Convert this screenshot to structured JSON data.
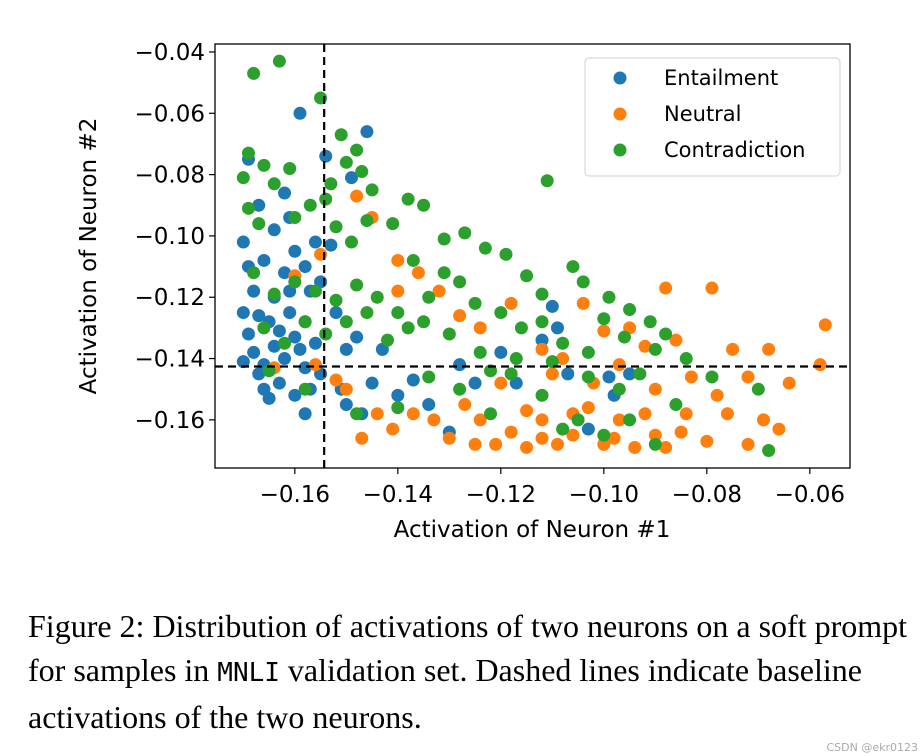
{
  "chart_data": {
    "type": "scatter",
    "title": "",
    "xlabel": "Activation of Neuron #1",
    "ylabel": "Activation of Neuron #2",
    "xlim": [
      -0.1755,
      -0.0522
    ],
    "ylim": [
      -0.1757,
      -0.0374
    ],
    "xticks": [
      "−0.16",
      "−0.14",
      "−0.12",
      "−0.10",
      "−0.08",
      "−0.06"
    ],
    "xtick_values": [
      -0.16,
      -0.14,
      -0.12,
      -0.1,
      -0.08,
      -0.06
    ],
    "yticks": [
      "−0.04",
      "−0.06",
      "−0.08",
      "−0.10",
      "−0.12",
      "−0.14",
      "−0.16"
    ],
    "ytick_values": [
      -0.04,
      -0.06,
      -0.08,
      -0.1,
      -0.12,
      -0.14,
      -0.16
    ],
    "grid": false,
    "legend_position": "top-right",
    "baselines": {
      "x": -0.1543,
      "y": -0.1426,
      "style": "dashed",
      "color": "#000000"
    },
    "series": [
      {
        "name": "Entailment",
        "color": "#1f77b4",
        "points": [
          [
            -0.17,
            -0.102
          ],
          [
            -0.169,
            -0.11
          ],
          [
            -0.168,
            -0.118
          ],
          [
            -0.17,
            -0.125
          ],
          [
            -0.169,
            -0.132
          ],
          [
            -0.168,
            -0.138
          ],
          [
            -0.17,
            -0.141
          ],
          [
            -0.167,
            -0.145
          ],
          [
            -0.166,
            -0.15
          ],
          [
            -0.165,
            -0.153
          ],
          [
            -0.163,
            -0.148
          ],
          [
            -0.165,
            -0.128
          ],
          [
            -0.164,
            -0.12
          ],
          [
            -0.166,
            -0.108
          ],
          [
            -0.164,
            -0.098
          ],
          [
            -0.167,
            -0.09
          ],
          [
            -0.169,
            -0.075
          ],
          [
            -0.162,
            -0.086
          ],
          [
            -0.161,
            -0.094
          ],
          [
            -0.16,
            -0.105
          ],
          [
            -0.162,
            -0.112
          ],
          [
            -0.161,
            -0.125
          ],
          [
            -0.16,
            -0.133
          ],
          [
            -0.162,
            -0.14
          ],
          [
            -0.158,
            -0.143
          ],
          [
            -0.159,
            -0.137
          ],
          [
            -0.158,
            -0.128
          ],
          [
            -0.157,
            -0.118
          ],
          [
            -0.158,
            -0.11
          ],
          [
            -0.156,
            -0.102
          ],
          [
            -0.155,
            -0.115
          ],
          [
            -0.156,
            -0.135
          ],
          [
            -0.155,
            -0.145
          ],
          [
            -0.157,
            -0.15
          ],
          [
            -0.16,
            -0.152
          ],
          [
            -0.158,
            -0.158
          ],
          [
            -0.159,
            -0.06
          ],
          [
            -0.154,
            -0.074
          ],
          [
            -0.146,
            -0.066
          ],
          [
            -0.149,
            -0.081
          ],
          [
            -0.153,
            -0.103
          ],
          [
            -0.152,
            -0.125
          ],
          [
            -0.15,
            -0.137
          ],
          [
            -0.148,
            -0.133
          ],
          [
            -0.151,
            -0.15
          ],
          [
            -0.15,
            -0.155
          ],
          [
            -0.147,
            -0.158
          ],
          [
            -0.145,
            -0.148
          ],
          [
            -0.143,
            -0.137
          ],
          [
            -0.14,
            -0.152
          ],
          [
            -0.137,
            -0.147
          ],
          [
            -0.134,
            -0.155
          ],
          [
            -0.13,
            -0.164
          ],
          [
            -0.128,
            -0.142
          ],
          [
            -0.125,
            -0.148
          ],
          [
            -0.12,
            -0.138
          ],
          [
            -0.117,
            -0.148
          ],
          [
            -0.112,
            -0.134
          ],
          [
            -0.109,
            -0.13
          ],
          [
            -0.11,
            -0.123
          ],
          [
            -0.107,
            -0.145
          ],
          [
            -0.103,
            -0.163
          ],
          [
            -0.098,
            -0.152
          ],
          [
            -0.095,
            -0.145
          ],
          [
            -0.099,
            -0.146
          ],
          [
            -0.163,
            -0.131
          ],
          [
            -0.167,
            -0.126
          ],
          [
            -0.161,
            -0.118
          ],
          [
            -0.164,
            -0.136
          ],
          [
            -0.166,
            -0.142
          ]
        ]
      },
      {
        "name": "Neutral",
        "color": "#ff7f0e",
        "points": [
          [
            -0.148,
            -0.087
          ],
          [
            -0.145,
            -0.094
          ],
          [
            -0.14,
            -0.108
          ],
          [
            -0.136,
            -0.112
          ],
          [
            -0.132,
            -0.118
          ],
          [
            -0.128,
            -0.126
          ],
          [
            -0.124,
            -0.13
          ],
          [
            -0.118,
            -0.122
          ],
          [
            -0.112,
            -0.137
          ],
          [
            -0.108,
            -0.14
          ],
          [
            -0.104,
            -0.122
          ],
          [
            -0.1,
            -0.131
          ],
          [
            -0.095,
            -0.13
          ],
          [
            -0.092,
            -0.136
          ],
          [
            -0.088,
            -0.117
          ],
          [
            -0.086,
            -0.134
          ],
          [
            -0.079,
            -0.117
          ],
          [
            -0.075,
            -0.137
          ],
          [
            -0.068,
            -0.137
          ],
          [
            -0.057,
            -0.129
          ],
          [
            -0.058,
            -0.142
          ],
          [
            -0.064,
            -0.148
          ],
          [
            -0.069,
            -0.16
          ],
          [
            -0.076,
            -0.158
          ],
          [
            -0.08,
            -0.167
          ],
          [
            -0.085,
            -0.164
          ],
          [
            -0.09,
            -0.165
          ],
          [
            -0.094,
            -0.169
          ],
          [
            -0.097,
            -0.16
          ],
          [
            -0.1,
            -0.168
          ],
          [
            -0.103,
            -0.156
          ],
          [
            -0.106,
            -0.165
          ],
          [
            -0.109,
            -0.168
          ],
          [
            -0.112,
            -0.16
          ],
          [
            -0.115,
            -0.169
          ],
          [
            -0.118,
            -0.164
          ],
          [
            -0.121,
            -0.168
          ],
          [
            -0.124,
            -0.16
          ],
          [
            -0.127,
            -0.155
          ],
          [
            -0.13,
            -0.166
          ],
          [
            -0.133,
            -0.16
          ],
          [
            -0.137,
            -0.158
          ],
          [
            -0.141,
            -0.163
          ],
          [
            -0.144,
            -0.158
          ],
          [
            -0.147,
            -0.166
          ],
          [
            -0.15,
            -0.15
          ],
          [
            -0.152,
            -0.147
          ],
          [
            -0.156,
            -0.142
          ],
          [
            -0.164,
            -0.143
          ],
          [
            -0.16,
            -0.113
          ],
          [
            -0.155,
            -0.106
          ],
          [
            -0.12,
            -0.148
          ],
          [
            -0.11,
            -0.145
          ],
          [
            -0.102,
            -0.148
          ],
          [
            -0.097,
            -0.142
          ],
          [
            -0.09,
            -0.15
          ],
          [
            -0.083,
            -0.146
          ],
          [
            -0.078,
            -0.152
          ],
          [
            -0.072,
            -0.146
          ],
          [
            -0.066,
            -0.163
          ],
          [
            -0.072,
            -0.168
          ],
          [
            -0.088,
            -0.169
          ],
          [
            -0.106,
            -0.158
          ],
          [
            -0.115,
            -0.157
          ],
          [
            -0.125,
            -0.168
          ],
          [
            -0.112,
            -0.166
          ],
          [
            -0.098,
            -0.166
          ],
          [
            -0.092,
            -0.158
          ],
          [
            -0.084,
            -0.158
          ],
          [
            -0.14,
            -0.118
          ]
        ]
      },
      {
        "name": "Contradiction",
        "color": "#2ca02c",
        "points": [
          [
            -0.168,
            -0.047
          ],
          [
            -0.163,
            -0.043
          ],
          [
            -0.155,
            -0.055
          ],
          [
            -0.169,
            -0.073
          ],
          [
            -0.166,
            -0.077
          ],
          [
            -0.161,
            -0.078
          ],
          [
            -0.17,
            -0.081
          ],
          [
            -0.164,
            -0.083
          ],
          [
            -0.169,
            -0.091
          ],
          [
            -0.167,
            -0.096
          ],
          [
            -0.16,
            -0.094
          ],
          [
            -0.157,
            -0.09
          ],
          [
            -0.154,
            -0.088
          ],
          [
            -0.153,
            -0.083
          ],
          [
            -0.15,
            -0.076
          ],
          [
            -0.148,
            -0.072
          ],
          [
            -0.151,
            -0.067
          ],
          [
            -0.147,
            -0.079
          ],
          [
            -0.145,
            -0.085
          ],
          [
            -0.152,
            -0.097
          ],
          [
            -0.149,
            -0.102
          ],
          [
            -0.146,
            -0.095
          ],
          [
            -0.141,
            -0.096
          ],
          [
            -0.138,
            -0.088
          ],
          [
            -0.135,
            -0.09
          ],
          [
            -0.131,
            -0.101
          ],
          [
            -0.127,
            -0.099
          ],
          [
            -0.123,
            -0.104
          ],
          [
            -0.111,
            -0.082
          ],
          [
            -0.119,
            -0.106
          ],
          [
            -0.115,
            -0.113
          ],
          [
            -0.112,
            -0.119
          ],
          [
            -0.106,
            -0.11
          ],
          [
            -0.104,
            -0.115
          ],
          [
            -0.099,
            -0.12
          ],
          [
            -0.095,
            -0.124
          ],
          [
            -0.091,
            -0.128
          ],
          [
            -0.088,
            -0.132
          ],
          [
            -0.09,
            -0.137
          ],
          [
            -0.084,
            -0.14
          ],
          [
            -0.079,
            -0.146
          ],
          [
            -0.068,
            -0.17
          ],
          [
            -0.07,
            -0.15
          ],
          [
            -0.086,
            -0.155
          ],
          [
            -0.095,
            -0.16
          ],
          [
            -0.1,
            -0.165
          ],
          [
            -0.105,
            -0.16
          ],
          [
            -0.112,
            -0.152
          ],
          [
            -0.118,
            -0.145
          ],
          [
            -0.124,
            -0.138
          ],
          [
            -0.13,
            -0.132
          ],
          [
            -0.135,
            -0.128
          ],
          [
            -0.14,
            -0.125
          ],
          [
            -0.144,
            -0.12
          ],
          [
            -0.148,
            -0.116
          ],
          [
            -0.152,
            -0.121
          ],
          [
            -0.156,
            -0.118
          ],
          [
            -0.16,
            -0.115
          ],
          [
            -0.164,
            -0.119
          ],
          [
            -0.168,
            -0.112
          ],
          [
            -0.166,
            -0.13
          ],
          [
            -0.162,
            -0.135
          ],
          [
            -0.158,
            -0.128
          ],
          [
            -0.154,
            -0.132
          ],
          [
            -0.15,
            -0.128
          ],
          [
            -0.146,
            -0.125
          ],
          [
            -0.142,
            -0.134
          ],
          [
            -0.138,
            -0.13
          ],
          [
            -0.134,
            -0.12
          ],
          [
            -0.128,
            -0.115
          ],
          [
            -0.125,
            -0.122
          ],
          [
            -0.12,
            -0.125
          ],
          [
            -0.116,
            -0.13
          ],
          [
            -0.112,
            -0.128
          ],
          [
            -0.108,
            -0.135
          ],
          [
            -0.103,
            -0.138
          ],
          [
            -0.1,
            -0.127
          ],
          [
            -0.096,
            -0.133
          ],
          [
            -0.093,
            -0.145
          ],
          [
            -0.097,
            -0.15
          ],
          [
            -0.103,
            -0.146
          ],
          [
            -0.11,
            -0.141
          ],
          [
            -0.117,
            -0.14
          ],
          [
            -0.122,
            -0.144
          ],
          [
            -0.128,
            -0.15
          ],
          [
            -0.134,
            -0.146
          ],
          [
            -0.14,
            -0.156
          ],
          [
            -0.148,
            -0.158
          ],
          [
            -0.158,
            -0.15
          ],
          [
            -0.165,
            -0.144
          ],
          [
            -0.108,
            -0.163
          ],
          [
            -0.09,
            -0.168
          ],
          [
            -0.122,
            -0.158
          ],
          [
            -0.131,
            -0.112
          ],
          [
            -0.137,
            -0.108
          ]
        ]
      }
    ]
  },
  "caption": {
    "part1": "Figure 2: Distribution of activations of two neurons on a soft prompt for samples in ",
    "dataset": "MNLI",
    "part2": " validation set. Dashed lines indicate baseline activations of the two neurons."
  },
  "watermark": "CSDN @ekr0123"
}
